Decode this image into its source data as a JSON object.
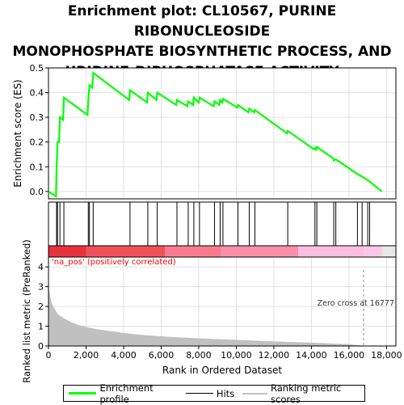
{
  "title_lines": [
    "Enrichment plot: CL10567, PURINE RIBONUCLEOSIDE",
    "MONOPHOSPHATE BIOSYNTHETIC PROCESS, AND",
    "URIDINE-DIPHOSPHATASE ACTIVITY"
  ],
  "colors": {
    "enrichment": "#00ff00",
    "hits": "#000000",
    "ranking": "#c0c0c0",
    "grid": "#e0e0e0",
    "positive_label": "#ff0000",
    "zero_line": "#888888"
  },
  "chart_data": [
    {
      "type": "line",
      "name": "enrichment-profile",
      "ylabel": "Enrichment score (ES)",
      "xlim": [
        0,
        18500
      ],
      "ylim": [
        -0.03,
        0.5
      ],
      "yticks": [
        "0.0",
        "0.1",
        "0.2",
        "0.3",
        "0.4",
        "0.5"
      ],
      "grid": true,
      "series": [
        {
          "name": "Enrichment profile",
          "points": [
            [
              0,
              0.0
            ],
            [
              400,
              -0.02
            ],
            [
              430,
              0.09
            ],
            [
              480,
              0.2
            ],
            [
              560,
              0.2
            ],
            [
              610,
              0.3
            ],
            [
              780,
              0.29
            ],
            [
              820,
              0.38
            ],
            [
              2080,
              0.31
            ],
            [
              2120,
              0.37
            ],
            [
              2180,
              0.43
            ],
            [
              2330,
              0.42
            ],
            [
              2380,
              0.48
            ],
            [
              4300,
              0.37
            ],
            [
              4340,
              0.41
            ],
            [
              5250,
              0.36
            ],
            [
              5290,
              0.4
            ],
            [
              5750,
              0.37
            ],
            [
              5790,
              0.4
            ],
            [
              6800,
              0.35
            ],
            [
              6840,
              0.37
            ],
            [
              7400,
              0.345
            ],
            [
              7440,
              0.365
            ],
            [
              7700,
              0.35
            ],
            [
              7740,
              0.38
            ],
            [
              8000,
              0.36
            ],
            [
              8040,
              0.38
            ],
            [
              8800,
              0.345
            ],
            [
              8840,
              0.365
            ],
            [
              9100,
              0.35
            ],
            [
              9140,
              0.37
            ],
            [
              9250,
              0.36
            ],
            [
              9290,
              0.375
            ],
            [
              10050,
              0.34
            ],
            [
              10090,
              0.35
            ],
            [
              10650,
              0.32
            ],
            [
              10690,
              0.335
            ],
            [
              10950,
              0.32
            ],
            [
              10990,
              0.33
            ],
            [
              12700,
              0.235
            ],
            [
              12740,
              0.245
            ],
            [
              14150,
              0.17
            ],
            [
              14190,
              0.175
            ],
            [
              14250,
              0.17
            ],
            [
              14290,
              0.18
            ],
            [
              15150,
              0.135
            ],
            [
              15190,
              0.125
            ],
            [
              15300,
              0.13
            ],
            [
              16450,
              0.07
            ],
            [
              16700,
              0.06
            ],
            [
              17000,
              0.045
            ],
            [
              17100,
              0.04
            ],
            [
              17750,
              0.0
            ]
          ]
        }
      ]
    },
    {
      "type": "hits",
      "name": "gene-hits",
      "x": [
        430,
        480,
        610,
        820,
        2120,
        2180,
        2380,
        4340,
        5290,
        5790,
        6840,
        7440,
        7740,
        8040,
        8840,
        9140,
        9290,
        10090,
        10690,
        10990,
        12740,
        14190,
        14290,
        15190,
        15300,
        16450,
        16700,
        17000,
        17100
      ]
    },
    {
      "type": "area",
      "name": "ranked-list-metric",
      "ylabel": "Ranked list metric (PreRanked)",
      "xlabel": "Rank in Ordered Dataset",
      "xlim": [
        0,
        18500
      ],
      "ylim": [
        0,
        4.5
      ],
      "xticks": [
        "0",
        "2,000",
        "4,000",
        "6,000",
        "8,000",
        "10,000",
        "12,000",
        "14,000",
        "16,000",
        "18,000"
      ],
      "yticks": [
        "0",
        "1",
        "2",
        "3",
        "4"
      ],
      "series": [
        {
          "name": "Ranking metric scores",
          "points": [
            [
              0,
              3.0
            ],
            [
              60,
              2.6
            ],
            [
              150,
              2.2
            ],
            [
              300,
              1.9
            ],
            [
              500,
              1.6
            ],
            [
              800,
              1.4
            ],
            [
              1200,
              1.2
            ],
            [
              1600,
              1.05
            ],
            [
              2000,
              0.95
            ],
            [
              2500,
              0.85
            ],
            [
              3000,
              0.78
            ],
            [
              4000,
              0.65
            ],
            [
              5000,
              0.55
            ],
            [
              6000,
              0.48
            ],
            [
              7000,
              0.42
            ],
            [
              8000,
              0.38
            ],
            [
              9000,
              0.34
            ],
            [
              10000,
              0.3
            ],
            [
              11000,
              0.26
            ],
            [
              12000,
              0.22
            ],
            [
              13000,
              0.19
            ],
            [
              14000,
              0.16
            ],
            [
              15000,
              0.12
            ],
            [
              16000,
              0.08
            ],
            [
              16777,
              0.0
            ],
            [
              17750,
              0.0
            ]
          ]
        }
      ],
      "annotations": {
        "positive_label": "'na_pos' (positively correlated)",
        "zero_cross": "Zero cross at 16777",
        "zero_cross_x": 16777
      }
    }
  ],
  "legend": {
    "enrichment_label": "Enrichment profile",
    "hits_label": "Hits",
    "ranking_label": "Ranking metric scores"
  }
}
